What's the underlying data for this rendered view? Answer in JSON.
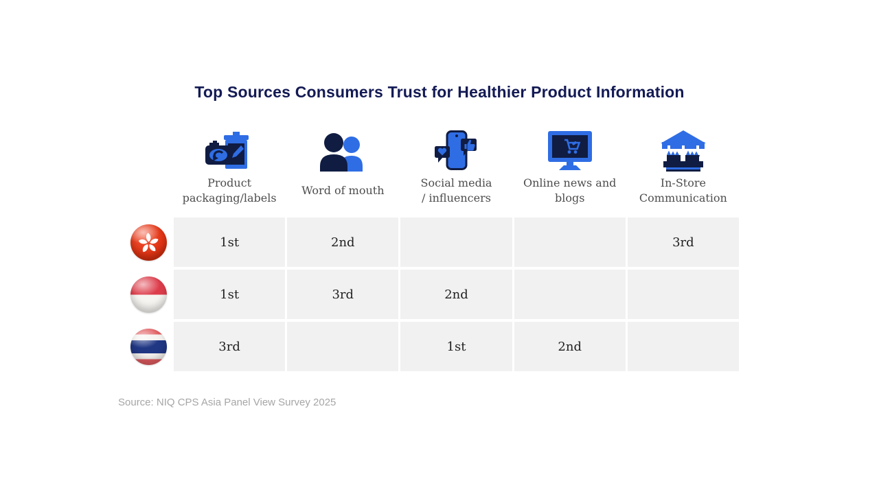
{
  "title": "Top Sources Consumers Trust for Healthier Product Information",
  "source": "Source: NIQ CPS Asia Panel View Survey 2025",
  "columns": [
    {
      "label": "Product\npackaging/labels",
      "icon": "packaging-label-icon"
    },
    {
      "label": "Word of mouth",
      "icon": "people-icon"
    },
    {
      "label": "Social media\n/ influencers",
      "icon": "phone-social-icon"
    },
    {
      "label": "Online news and\nblogs",
      "icon": "monitor-cart-icon"
    },
    {
      "label": "In-Store\nCommunication",
      "icon": "market-stall-icon"
    }
  ],
  "rows": [
    {
      "country": "Hong Kong",
      "flag": "hong-kong",
      "ranks": [
        "1st",
        "2nd",
        "",
        "",
        "3rd"
      ]
    },
    {
      "country": "Indonesia",
      "flag": "indonesia",
      "ranks": [
        "1st",
        "3rd",
        "2nd",
        "",
        ""
      ]
    },
    {
      "country": "Thailand",
      "flag": "thailand",
      "ranks": [
        "3rd",
        "",
        "1st",
        "2nd",
        ""
      ]
    }
  ],
  "colors": {
    "title_navy": "#131a54",
    "icon_navy": "#101c42",
    "icon_blue": "#2f6de4",
    "cell_background": "#f1f1f1",
    "label_gray": "#4d4d4d",
    "source_gray": "#a6a6a6"
  },
  "chart_data": {
    "type": "table",
    "title": "Top Sources Consumers Trust for Healthier Product Information",
    "columns": [
      "Product packaging/labels",
      "Word of mouth",
      "Social media / influencers",
      "Online news and blogs",
      "In-Store Communication"
    ],
    "rows": [
      {
        "country": "Hong Kong",
        "values": [
          "1st",
          "2nd",
          "",
          "",
          "3rd"
        ]
      },
      {
        "country": "Indonesia",
        "values": [
          "1st",
          "3rd",
          "2nd",
          "",
          ""
        ]
      },
      {
        "country": "Thailand",
        "values": [
          "3rd",
          "",
          "1st",
          "2nd",
          ""
        ]
      }
    ],
    "source": "Source: NIQ CPS Asia Panel View Survey 2025"
  }
}
